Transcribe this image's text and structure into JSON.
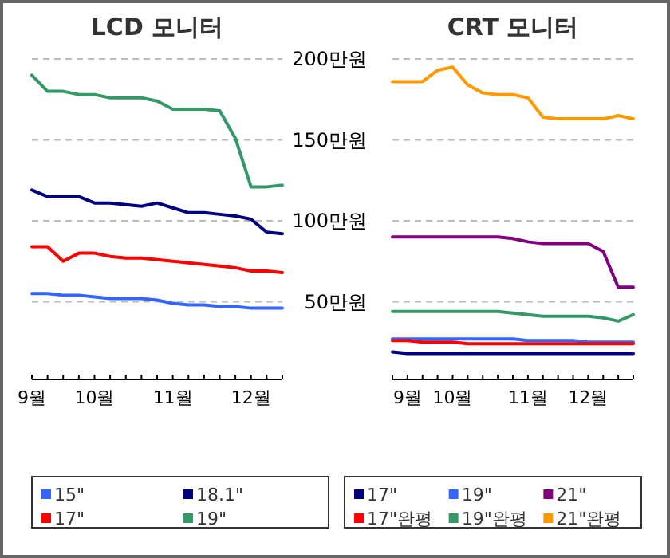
{
  "chart_data": [
    {
      "type": "line",
      "title": "LCD 모니터",
      "ylim": [
        0,
        200
      ],
      "categories": [
        "9월",
        null,
        null,
        null,
        "10월",
        null,
        null,
        null,
        null,
        "11월",
        null,
        null,
        null,
        null,
        "12월",
        null,
        null
      ],
      "yticks": [
        {
          "value": 50,
          "label": "50만원"
        },
        {
          "value": 100,
          "label": "100만원"
        },
        {
          "value": 150,
          "label": "150만원"
        },
        {
          "value": 200,
          "label": "200만원"
        }
      ],
      "grid": "y",
      "legend": "bottom",
      "series": [
        {
          "name": "15\"",
          "color": "#3366ff",
          "values": [
            55,
            55,
            54,
            54,
            53,
            52,
            52,
            52,
            51,
            49,
            48,
            48,
            47,
            47,
            46,
            46,
            46
          ]
        },
        {
          "name": "18.1\"",
          "color": "#000080",
          "values": [
            119,
            115,
            115,
            115,
            111,
            111,
            110,
            109,
            111,
            108,
            105,
            105,
            104,
            103,
            101,
            93,
            92
          ]
        },
        {
          "name": "17\"",
          "color": "#ff0000",
          "values": [
            84,
            84,
            75,
            80,
            80,
            78,
            77,
            77,
            76,
            75,
            74,
            73,
            72,
            71,
            69,
            69,
            68
          ]
        },
        {
          "name": "19\"",
          "color": "#339966",
          "values": [
            190,
            180,
            180,
            178,
            178,
            176,
            176,
            176,
            174,
            169,
            169,
            169,
            168,
            151,
            121,
            121,
            122
          ]
        }
      ]
    },
    {
      "type": "line",
      "title": "CRT 모니터",
      "ylim": [
        0,
        200
      ],
      "categories": [
        null,
        "9월",
        null,
        null,
        "10월",
        null,
        null,
        null,
        null,
        "11월",
        null,
        null,
        null,
        "12월",
        null,
        null,
        null
      ],
      "yticks": [
        50,
        100,
        150,
        200
      ],
      "tick_labels": "x",
      "grid": "y",
      "legend": "bottom",
      "series": [
        {
          "name": "17\"",
          "color": "#000080",
          "values": [
            19,
            18,
            18,
            18,
            18,
            18,
            18,
            18,
            18,
            18,
            18,
            18,
            18,
            18,
            18,
            18,
            18
          ]
        },
        {
          "name": "19\"",
          "color": "#3366ff",
          "values": [
            27,
            27,
            27,
            27,
            27,
            27,
            27,
            27,
            27,
            26,
            26,
            26,
            26,
            25,
            25,
            25,
            25
          ]
        },
        {
          "name": "21\"",
          "color": "#800080",
          "values": [
            90,
            90,
            90,
            90,
            90,
            90,
            90,
            90,
            89,
            87,
            86,
            86,
            86,
            86,
            81,
            59,
            59
          ]
        },
        {
          "name": "17\"완평",
          "color": "#ff0000",
          "values": [
            26,
            26,
            25,
            25,
            25,
            24,
            24,
            24,
            24,
            24,
            24,
            24,
            24,
            24,
            24,
            24,
            24
          ]
        },
        {
          "name": "19\"완평",
          "color": "#339966",
          "values": [
            44,
            44,
            44,
            44,
            44,
            44,
            44,
            44,
            43,
            42,
            41,
            41,
            41,
            41,
            40,
            38,
            42
          ]
        },
        {
          "name": "21\"완평",
          "color": "#ff9900",
          "values": [
            186,
            186,
            186,
            193,
            195,
            184,
            179,
            178,
            178,
            176,
            164,
            163,
            163,
            163,
            163,
            165,
            163
          ]
        }
      ]
    }
  ]
}
